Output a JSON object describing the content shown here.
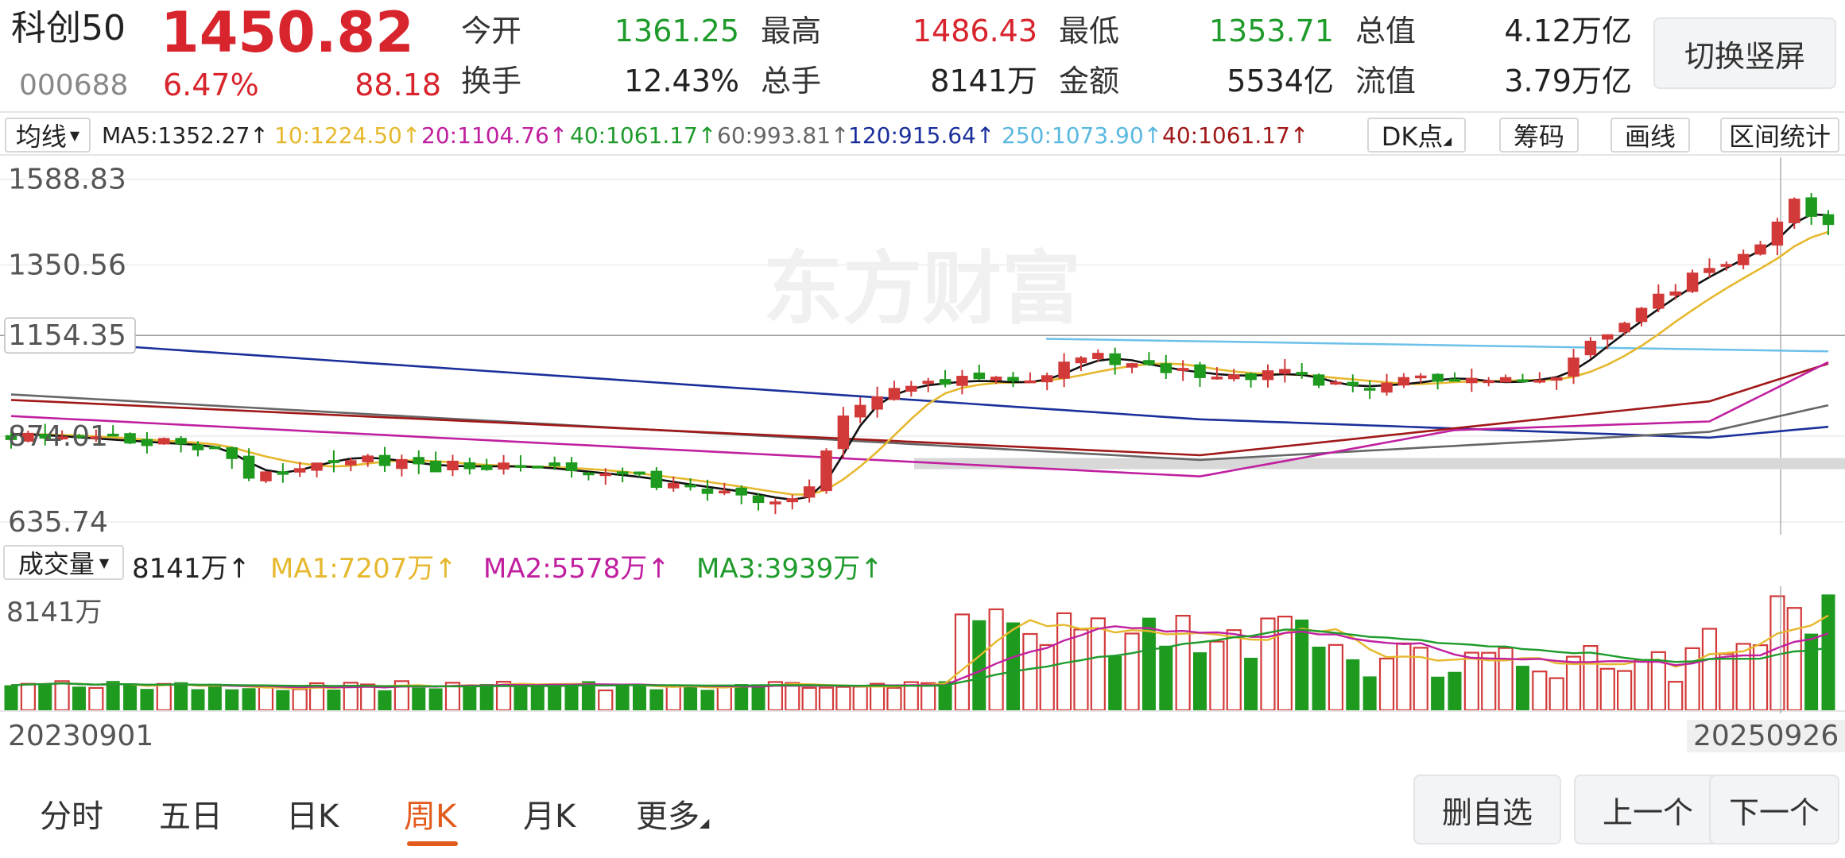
{
  "quote": {
    "name": "科创50",
    "code": "000688",
    "price": "1450.82",
    "change_pct": "6.47%",
    "change": "88.18",
    "fields": [
      {
        "label": "今开",
        "value": "1361.25",
        "color": "green"
      },
      {
        "label": "最高",
        "value": "1486.43",
        "color": "red"
      },
      {
        "label": "最低",
        "value": "1353.71",
        "color": "green"
      },
      {
        "label": "总值",
        "value": "4.12万亿",
        "color": "black"
      },
      {
        "label": "换手",
        "value": "12.43%",
        "color": "black"
      },
      {
        "label": "总手",
        "value": "8141万",
        "color": "black"
      },
      {
        "label": "金额",
        "value": "5534亿",
        "color": "black"
      },
      {
        "label": "流值",
        "value": "3.79万亿",
        "color": "black"
      }
    ],
    "toggle_label": "切换竖屏"
  },
  "ma_bar": {
    "selector": "均线",
    "items": [
      {
        "text": "MA5:1352.27↑",
        "color": "#222222"
      },
      {
        "text": "10:1224.50↑",
        "color": "#e6b82e"
      },
      {
        "text": "20:1104.76↑",
        "color": "#c020a0"
      },
      {
        "text": "40:1061.17↑",
        "color": "#1f9b2c"
      },
      {
        "text": "60:993.81↑",
        "color": "#666666"
      },
      {
        "text": "120:915.64↑",
        "color": "#1a2f9a"
      },
      {
        "text": "250:1073.90↑",
        "color": "#5ab8e0"
      },
      {
        "text": "40:1061.17↑",
        "color": "#a01818"
      }
    ],
    "dk_label": "DK点",
    "chip_label": "筹码",
    "draw_label": "画线",
    "stats_label": "区间统计"
  },
  "chart_data": {
    "type": "candlestick",
    "price_labels": [
      "1588.83",
      "1350.56",
      "1154.35",
      "874.01",
      "635.74"
    ],
    "watermark": "东方财富",
    "volume_header": {
      "selector": "成交量",
      "value": "8141万↑",
      "ma1": "MA1:7207万↑",
      "ma2": "MA2:5578万↑",
      "ma3": "MA3:3939万↑"
    },
    "volume_axis_label": "8141万",
    "start_date": "20230901",
    "end_date": "20250926",
    "colors": {
      "up": "#d23a3a",
      "down": "#1e9a1e"
    }
  },
  "nav": {
    "tabs": [
      "分时",
      "五日",
      "日K",
      "周K",
      "月K",
      "更多"
    ],
    "active": "周K",
    "buttons": [
      "删自选",
      "上一个",
      "下一个"
    ]
  }
}
